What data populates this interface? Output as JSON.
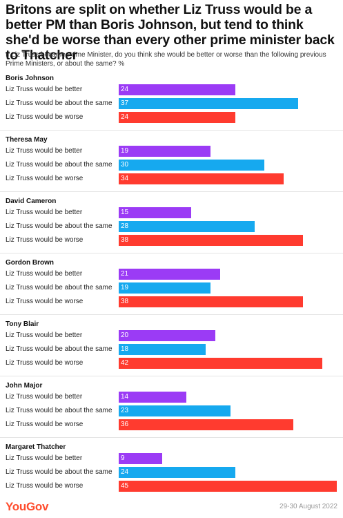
{
  "title": "Britons are split on whether Liz Truss would be a better PM than Boris Johnson, but tend to think she'd be worse than every other prime minister back to Thatcher",
  "subtitle": "If Liz Truss became Prime Minister, do you think she would be better or worse than the following previous Prime Ministers, or about the same? %",
  "footer": {
    "logo": "YouGov",
    "date": "29-30 August 2022"
  },
  "colors": {
    "better": "#9b3bf5",
    "same": "#16a9ef",
    "worse": "#ff3b2f"
  },
  "chart_data": {
    "type": "bar",
    "orientation": "horizontal",
    "xlim": [
      0,
      45
    ],
    "row_labels": [
      "Liz Truss would be better",
      "Liz Truss would be about the same",
      "Liz Truss would be worse"
    ],
    "groups": [
      {
        "name": "Boris Johnson",
        "values": [
          24,
          37,
          24
        ]
      },
      {
        "name": "Theresa May",
        "values": [
          19,
          30,
          34
        ]
      },
      {
        "name": "David Cameron",
        "values": [
          15,
          28,
          38
        ]
      },
      {
        "name": "Gordon Brown",
        "values": [
          21,
          19,
          38
        ]
      },
      {
        "name": "Tony Blair",
        "values": [
          20,
          18,
          42
        ]
      },
      {
        "name": "John Major",
        "values": [
          14,
          23,
          36
        ]
      },
      {
        "name": "Margaret Thatcher",
        "values": [
          9,
          24,
          45
        ]
      }
    ]
  }
}
